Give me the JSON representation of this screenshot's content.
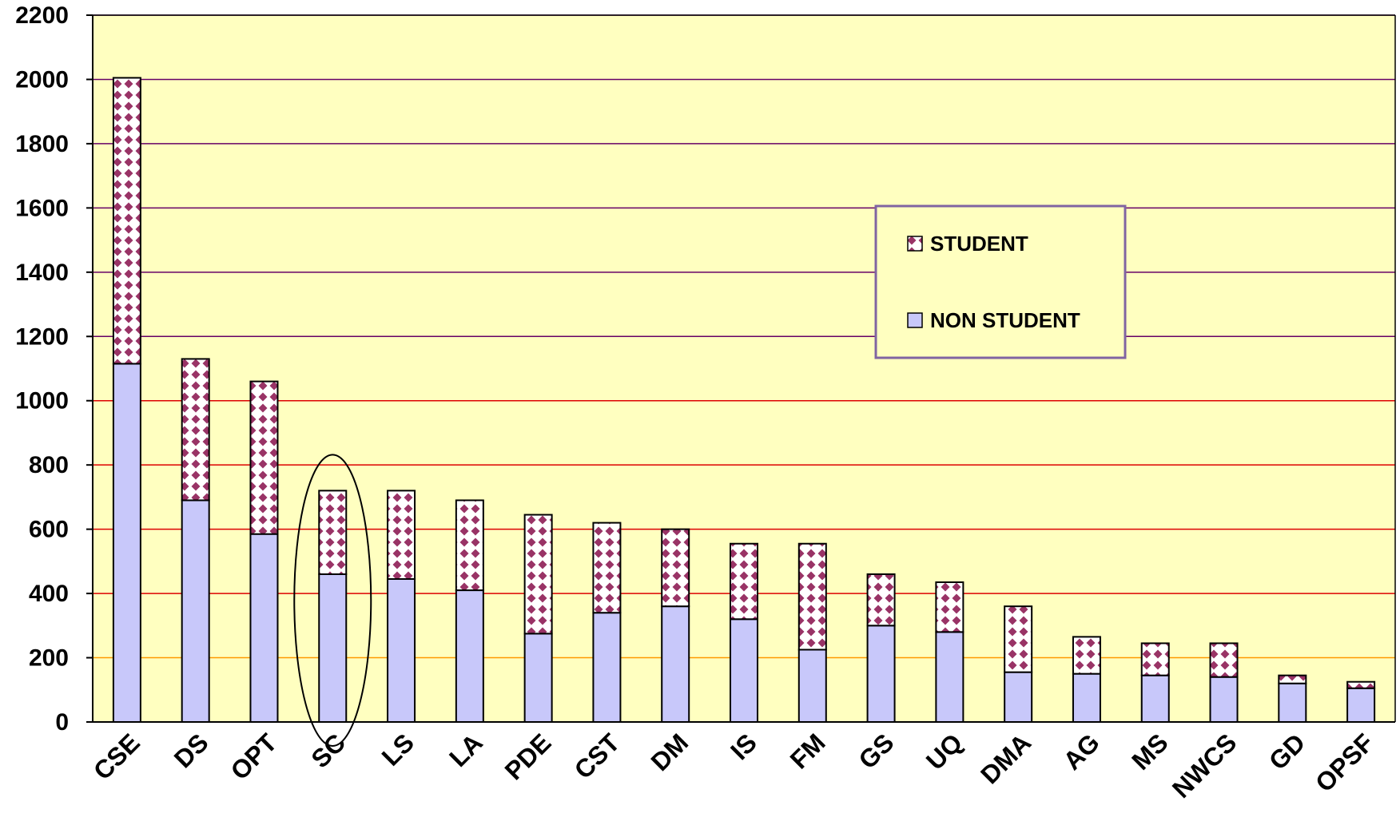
{
  "chart_data": {
    "type": "bar",
    "stacked": true,
    "categories": [
      "CSE",
      "DS",
      "OPT",
      "SC",
      "LS",
      "LA",
      "PDE",
      "CST",
      "DM",
      "IS",
      "FM",
      "GS",
      "UQ",
      "DMA",
      "AG",
      "MS",
      "NWCS",
      "GD",
      "OPSF"
    ],
    "series": [
      {
        "name": "NON STUDENT",
        "color": "#c8c8fa",
        "values": [
          1115,
          690,
          585,
          460,
          445,
          410,
          275,
          340,
          360,
          320,
          225,
          300,
          280,
          155,
          150,
          145,
          140,
          120,
          105
        ]
      },
      {
        "name": "STUDENT",
        "color": "#993366",
        "pattern": "dotted",
        "values": [
          890,
          440,
          475,
          260,
          275,
          280,
          370,
          280,
          240,
          235,
          330,
          160,
          155,
          205,
          115,
          100,
          105,
          25,
          20
        ]
      }
    ],
    "ylim": [
      0,
      2200
    ],
    "yticks": [
      0,
      200,
      400,
      600,
      800,
      1000,
      1200,
      1400,
      1600,
      1800,
      2000,
      2200
    ],
    "grid": true,
    "grid_colors": {
      "low": "#ff9900",
      "mid": "#dd0000",
      "high": "#660066"
    },
    "plot_background": "#ffffc0",
    "legend": {
      "position": "upper-right",
      "order": [
        "STUDENT",
        "NON STUDENT"
      ]
    },
    "highlight": {
      "category": "SC",
      "shape": "ellipse"
    },
    "title": "",
    "xlabel": "",
    "ylabel": ""
  }
}
